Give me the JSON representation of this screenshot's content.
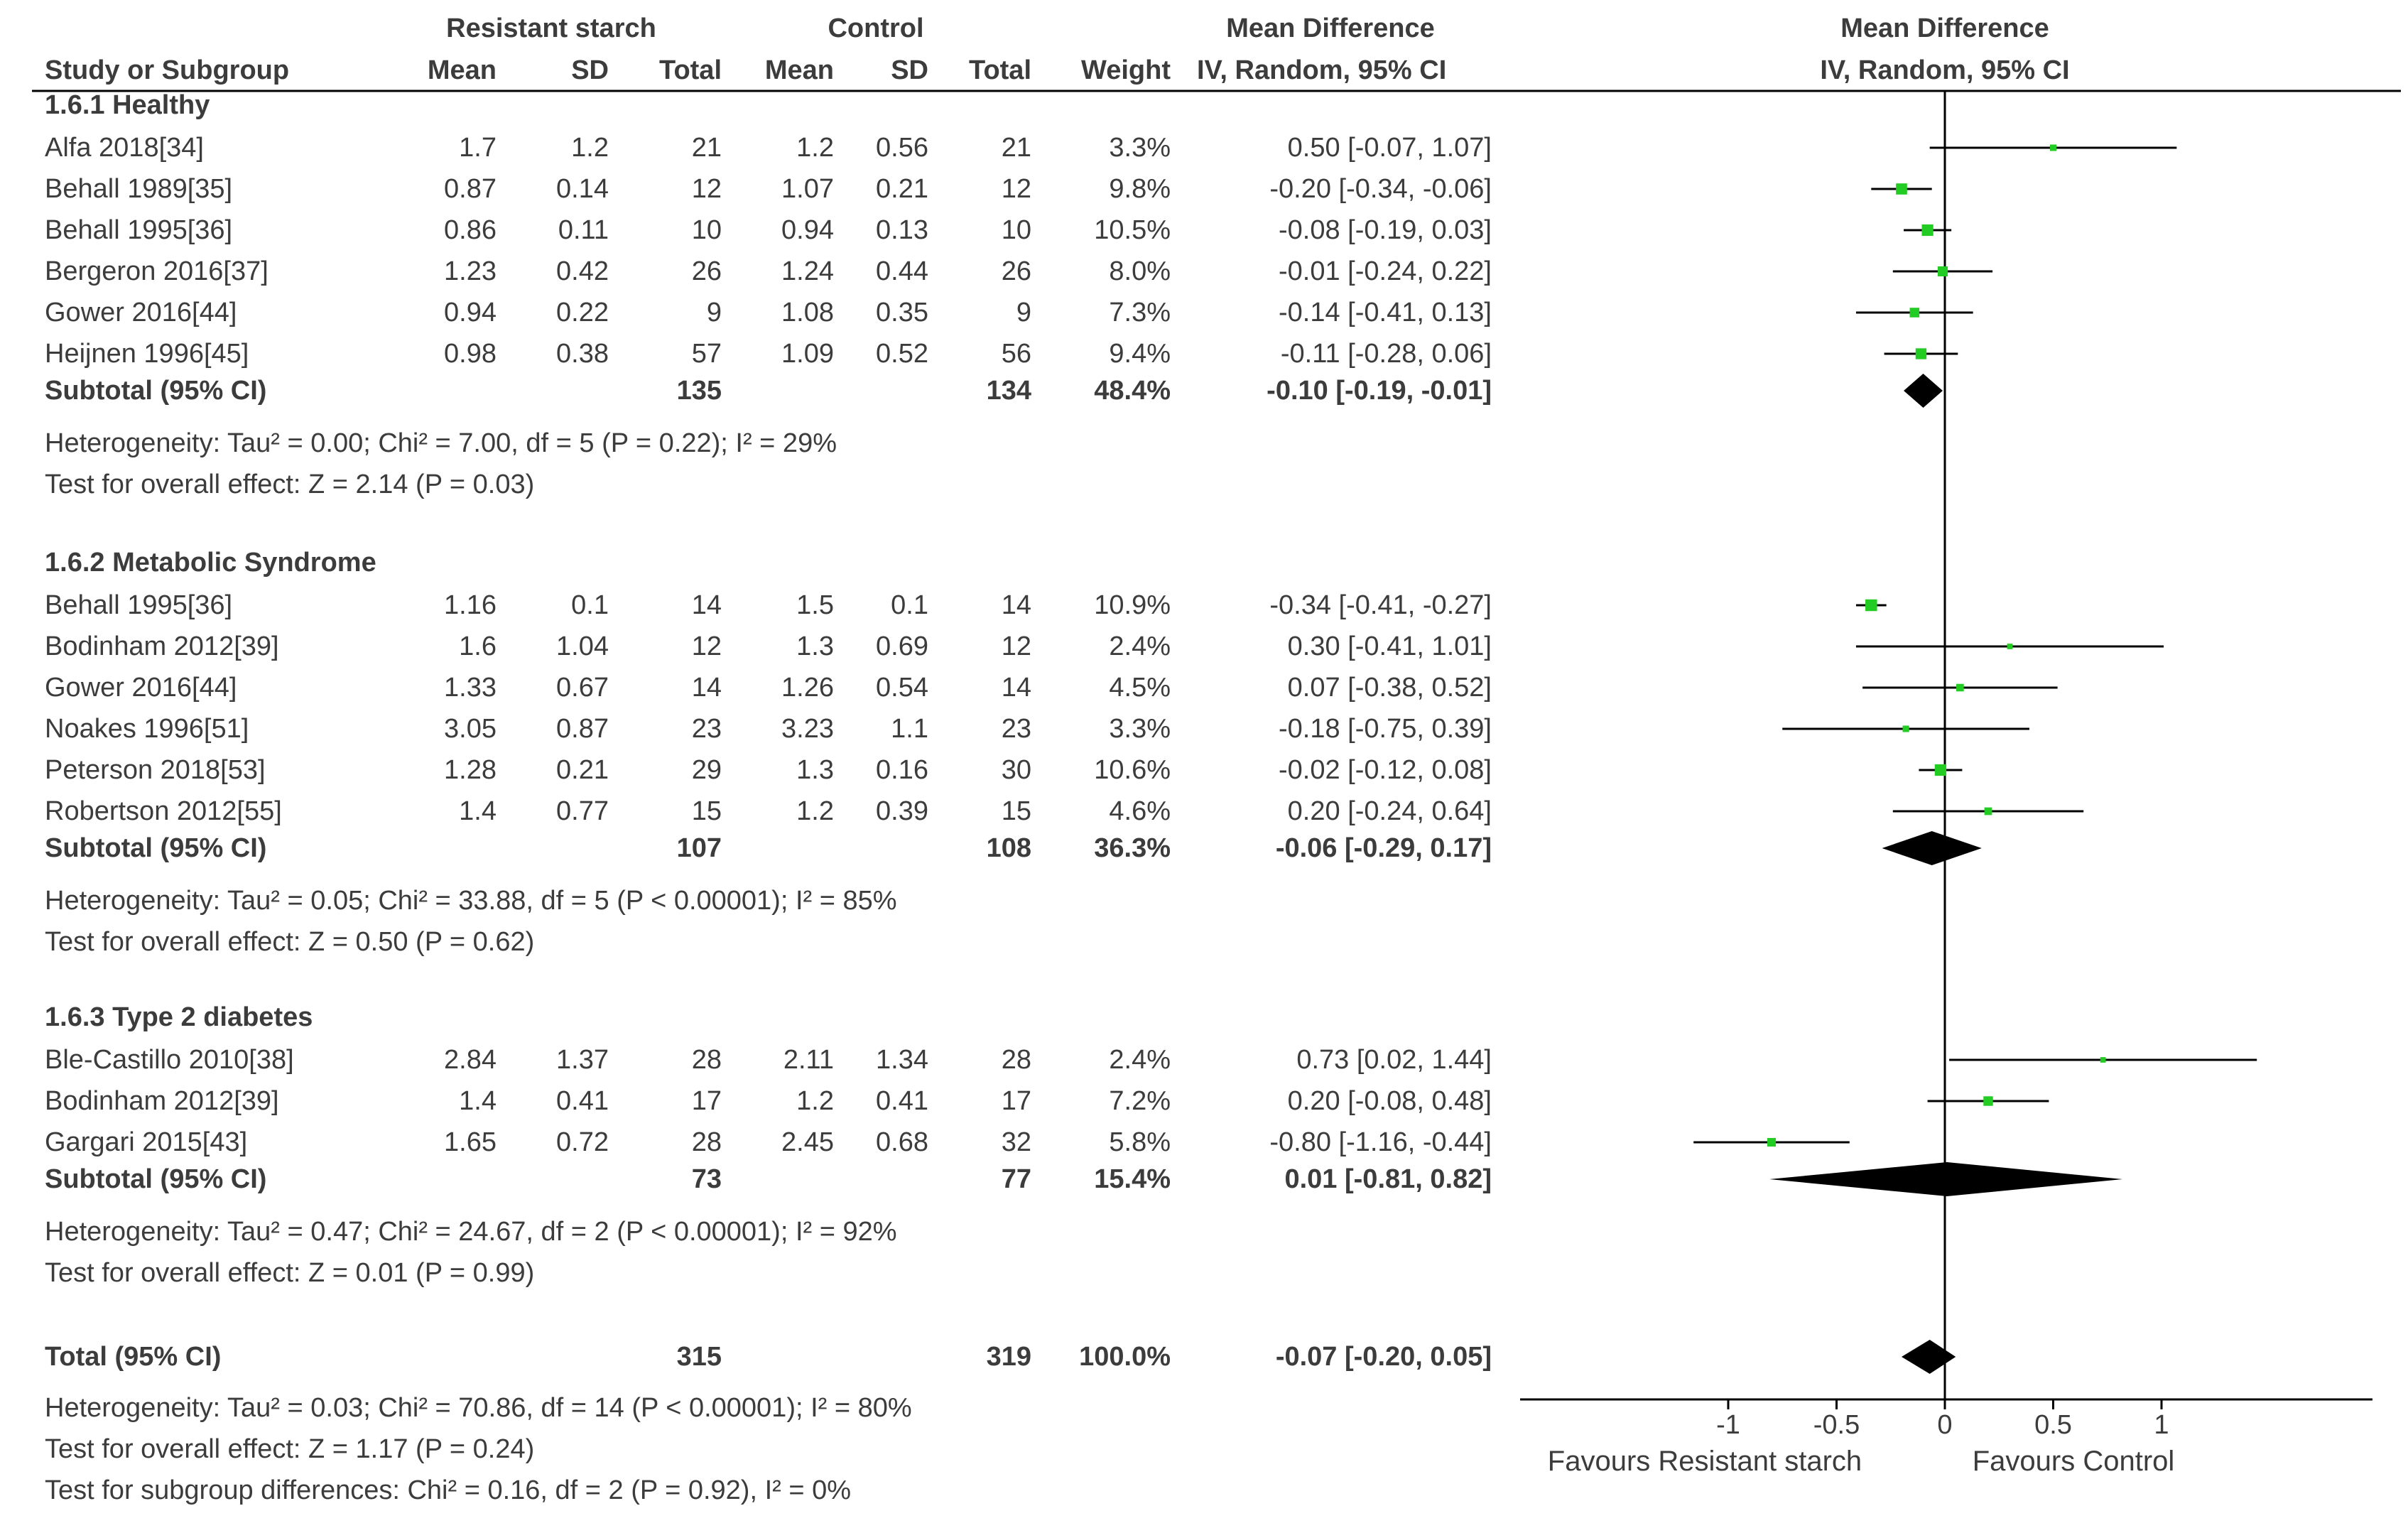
{
  "header": {
    "group1": "Resistant starch",
    "group2": "Control",
    "md_header": "Mean Difference",
    "md_sub": "IV, Random, 95% CI",
    "plot_header": "Mean Difference",
    "plot_sub": "IV, Random, 95% CI",
    "cols": {
      "study": "Study or Subgroup",
      "mean1": "Mean",
      "sd1": "SD",
      "total1": "Total",
      "mean2": "Mean",
      "sd2": "SD",
      "total2": "Total",
      "weight": "Weight"
    }
  },
  "groups": [
    {
      "title": "1.6.1 Healthy",
      "studies": [
        {
          "name": "Alfa 2018[34]",
          "mean1": "1.7",
          "sd1": "1.2",
          "total1": "21",
          "mean2": "1.2",
          "sd2": "0.56",
          "total2": "21",
          "weight": "3.3%",
          "ci": "0.50 [-0.07, 1.07]"
        },
        {
          "name": "Behall 1989[35]",
          "mean1": "0.87",
          "sd1": "0.14",
          "total1": "12",
          "mean2": "1.07",
          "sd2": "0.21",
          "total2": "12",
          "weight": "9.8%",
          "ci": "-0.20 [-0.34, -0.06]"
        },
        {
          "name": "Behall 1995[36]",
          "mean1": "0.86",
          "sd1": "0.11",
          "total1": "10",
          "mean2": "0.94",
          "sd2": "0.13",
          "total2": "10",
          "weight": "10.5%",
          "ci": "-0.08 [-0.19, 0.03]"
        },
        {
          "name": "Bergeron 2016[37]",
          "mean1": "1.23",
          "sd1": "0.42",
          "total1": "26",
          "mean2": "1.24",
          "sd2": "0.44",
          "total2": "26",
          "weight": "8.0%",
          "ci": "-0.01 [-0.24, 0.22]"
        },
        {
          "name": "Gower 2016[44]",
          "mean1": "0.94",
          "sd1": "0.22",
          "total1": "9",
          "mean2": "1.08",
          "sd2": "0.35",
          "total2": "9",
          "weight": "7.3%",
          "ci": "-0.14 [-0.41, 0.13]"
        },
        {
          "name": "Heijnen 1996[45]",
          "mean1": "0.98",
          "sd1": "0.38",
          "total1": "57",
          "mean2": "1.09",
          "sd2": "0.52",
          "total2": "56",
          "weight": "9.4%",
          "ci": "-0.11 [-0.28, 0.06]"
        }
      ],
      "subtotal": {
        "label": "Subtotal (95% CI)",
        "total1": "135",
        "total2": "134",
        "weight": "48.4%",
        "ci": "-0.10 [-0.19, -0.01]"
      },
      "heterogeneity": "Heterogeneity: Tau² = 0.00; Chi² = 7.00, df = 5 (P = 0.22); I² = 29%",
      "overall": "Test for overall effect: Z = 2.14 (P = 0.03)"
    },
    {
      "title": "1.6.2 Metabolic Syndrome",
      "studies": [
        {
          "name": "Behall 1995[36]",
          "mean1": "1.16",
          "sd1": "0.1",
          "total1": "14",
          "mean2": "1.5",
          "sd2": "0.1",
          "total2": "14",
          "weight": "10.9%",
          "ci": "-0.34 [-0.41, -0.27]"
        },
        {
          "name": "Bodinham 2012[39]",
          "mean1": "1.6",
          "sd1": "1.04",
          "total1": "12",
          "mean2": "1.3",
          "sd2": "0.69",
          "total2": "12",
          "weight": "2.4%",
          "ci": "0.30 [-0.41, 1.01]"
        },
        {
          "name": "Gower 2016[44]",
          "mean1": "1.33",
          "sd1": "0.67",
          "total1": "14",
          "mean2": "1.26",
          "sd2": "0.54",
          "total2": "14",
          "weight": "4.5%",
          "ci": "0.07 [-0.38, 0.52]"
        },
        {
          "name": "Noakes 1996[51]",
          "mean1": "3.05",
          "sd1": "0.87",
          "total1": "23",
          "mean2": "3.23",
          "sd2": "1.1",
          "total2": "23",
          "weight": "3.3%",
          "ci": "-0.18 [-0.75, 0.39]"
        },
        {
          "name": "Peterson 2018[53]",
          "mean1": "1.28",
          "sd1": "0.21",
          "total1": "29",
          "mean2": "1.3",
          "sd2": "0.16",
          "total2": "30",
          "weight": "10.6%",
          "ci": "-0.02 [-0.12, 0.08]"
        },
        {
          "name": "Robertson 2012[55]",
          "mean1": "1.4",
          "sd1": "0.77",
          "total1": "15",
          "mean2": "1.2",
          "sd2": "0.39",
          "total2": "15",
          "weight": "4.6%",
          "ci": "0.20 [-0.24, 0.64]"
        }
      ],
      "subtotal": {
        "label": "Subtotal (95% CI)",
        "total1": "107",
        "total2": "108",
        "weight": "36.3%",
        "ci": "-0.06 [-0.29, 0.17]"
      },
      "heterogeneity": "Heterogeneity: Tau² = 0.05; Chi² = 33.88, df = 5 (P < 0.00001); I² = 85%",
      "overall": "Test for overall effect: Z = 0.50 (P = 0.62)"
    },
    {
      "title": "1.6.3 Type 2 diabetes",
      "studies": [
        {
          "name": "Ble-Castillo 2010[38]",
          "mean1": "2.84",
          "sd1": "1.37",
          "total1": "28",
          "mean2": "2.11",
          "sd2": "1.34",
          "total2": "28",
          "weight": "2.4%",
          "ci": "0.73 [0.02, 1.44]"
        },
        {
          "name": "Bodinham 2012[39]",
          "mean1": "1.4",
          "sd1": "0.41",
          "total1": "17",
          "mean2": "1.2",
          "sd2": "0.41",
          "total2": "17",
          "weight": "7.2%",
          "ci": "0.20 [-0.08, 0.48]"
        },
        {
          "name": "Gargari 2015[43]",
          "mean1": "1.65",
          "sd1": "0.72",
          "total1": "28",
          "mean2": "2.45",
          "sd2": "0.68",
          "total2": "32",
          "weight": "5.8%",
          "ci": "-0.80 [-1.16, -0.44]"
        }
      ],
      "subtotal": {
        "label": "Subtotal (95% CI)",
        "total1": "73",
        "total2": "77",
        "weight": "15.4%",
        "ci": "0.01 [-0.81, 0.82]"
      },
      "heterogeneity": "Heterogeneity: Tau² = 0.47; Chi² = 24.67, df = 2 (P < 0.00001); I² = 92%",
      "overall": "Test for overall effect: Z = 0.01 (P = 0.99)"
    }
  ],
  "total": {
    "label": "Total (95% CI)",
    "total1": "315",
    "total2": "319",
    "weight": "100.0%",
    "ci": "-0.07 [-0.20, 0.05]"
  },
  "footer": [
    "Heterogeneity: Tau² = 0.03; Chi² = 70.86, df = 14 (P < 0.00001); I² = 80%",
    "Test for overall effect: Z = 1.17 (P = 0.24)",
    "Test for subgroup differences: Chi² = 0.16, df = 2 (P = 0.92), I² = 0%"
  ],
  "axis": {
    "left_label": "Favours Resistant starch",
    "right_label": "Favours Control"
  },
  "colors": {
    "marker": "#22cc22",
    "diamond": "#000000",
    "line": "#000000"
  },
  "chart_data": {
    "type": "scatter",
    "ylabel": "",
    "xlim": [
      -1.2,
      1.95
    ],
    "xticks": [
      -1,
      -0.5,
      0,
      0.5,
      1
    ],
    "xtick_labels": [
      "-1",
      "-0.5",
      "0",
      "0.5",
      "1"
    ],
    "xlabel": "",
    "study_effects": [
      {
        "name": "Alfa 2018[34]",
        "md": 0.5,
        "low": -0.07,
        "high": 1.07,
        "weight": 3.3
      },
      {
        "name": "Behall 1989[35]",
        "md": -0.2,
        "low": -0.34,
        "high": -0.06,
        "weight": 9.8
      },
      {
        "name": "Behall 1995[36]",
        "md": -0.08,
        "low": -0.19,
        "high": 0.03,
        "weight": 10.5
      },
      {
        "name": "Bergeron 2016[37]",
        "md": -0.01,
        "low": -0.24,
        "high": 0.22,
        "weight": 8.0
      },
      {
        "name": "Gower 2016[44]",
        "md": -0.14,
        "low": -0.41,
        "high": 0.13,
        "weight": 7.3
      },
      {
        "name": "Heijnen 1996[45]",
        "md": -0.11,
        "low": -0.28,
        "high": 0.06,
        "weight": 9.4
      },
      {
        "name": "Behall 1995[36]",
        "md": -0.34,
        "low": -0.41,
        "high": -0.27,
        "weight": 10.9
      },
      {
        "name": "Bodinham 2012[39]",
        "md": 0.3,
        "low": -0.41,
        "high": 1.01,
        "weight": 2.4
      },
      {
        "name": "Gower 2016[44]",
        "md": 0.07,
        "low": -0.38,
        "high": 0.52,
        "weight": 4.5
      },
      {
        "name": "Noakes 1996[51]",
        "md": -0.18,
        "low": -0.75,
        "high": 0.39,
        "weight": 3.3
      },
      {
        "name": "Peterson 2018[53]",
        "md": -0.02,
        "low": -0.12,
        "high": 0.08,
        "weight": 10.6
      },
      {
        "name": "Robertson 2012[55]",
        "md": 0.2,
        "low": -0.24,
        "high": 0.64,
        "weight": 4.6
      },
      {
        "name": "Ble-Castillo 2010[38]",
        "md": 0.73,
        "low": 0.02,
        "high": 1.44,
        "weight": 2.4
      },
      {
        "name": "Bodinham 2012[39]",
        "md": 0.2,
        "low": -0.08,
        "high": 0.48,
        "weight": 7.2
      },
      {
        "name": "Gargari 2015[43]",
        "md": -0.8,
        "low": -1.16,
        "high": -0.44,
        "weight": 5.8
      }
    ],
    "pooled_effects": [
      {
        "name": "Subtotal 1.6.1",
        "md": -0.1,
        "low": -0.19,
        "high": -0.01
      },
      {
        "name": "Subtotal 1.6.2",
        "md": -0.06,
        "low": -0.29,
        "high": 0.17
      },
      {
        "name": "Subtotal 1.6.3",
        "md": 0.01,
        "low": -0.81,
        "high": 0.82
      },
      {
        "name": "Total",
        "md": -0.07,
        "low": -0.2,
        "high": 0.05
      }
    ]
  }
}
